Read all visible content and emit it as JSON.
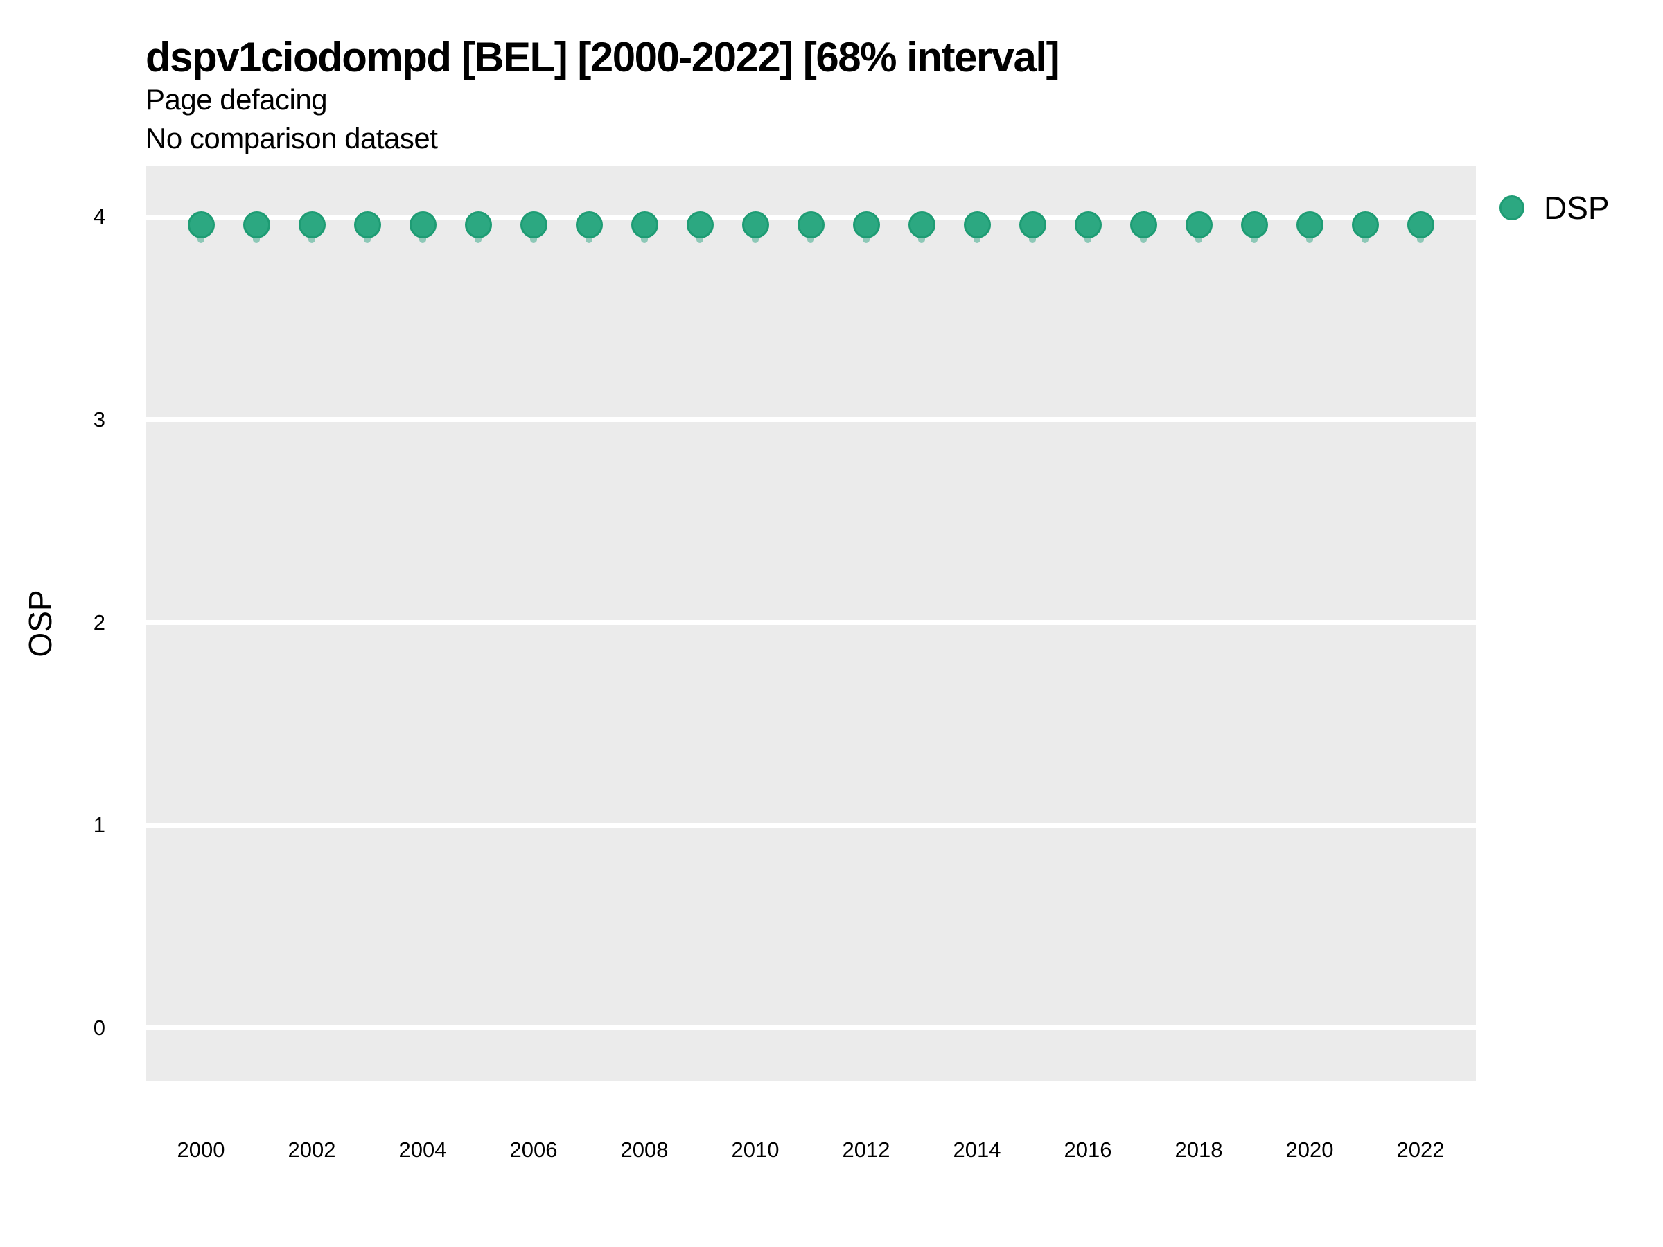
{
  "header": {
    "title": "dspv1ciodompd [BEL] [2000-2022] [68% interval]",
    "subtitle": "Page defacing",
    "note": "No comparison dataset"
  },
  "legend": {
    "label": "DSP"
  },
  "colors": {
    "panel_bg": "#EBEBEB",
    "gridline": "#FFFFFF",
    "point_fill": "#2CA881",
    "point_stroke": "#1E9C74",
    "interval_color": "#1B9E77",
    "interval_opacity": 0.45,
    "text": "#000000"
  },
  "chart_data": {
    "type": "scatter",
    "title": "dspv1ciodompd [BEL] [2000-2022] [68% interval]",
    "subtitle": "Page defacing",
    "note": "No comparison dataset",
    "xlabel": "",
    "ylabel": "OSP",
    "legend_position": "right",
    "grid": "horizontal-major-white-on-gray",
    "xlim": [
      1999,
      2023
    ],
    "ylim": [
      -0.26,
      4.25
    ],
    "xticks": [
      2000,
      2002,
      2004,
      2006,
      2008,
      2010,
      2012,
      2014,
      2016,
      2018,
      2020,
      2022
    ],
    "yticks": [
      0,
      1,
      2,
      3,
      4
    ],
    "series": [
      {
        "name": "DSP",
        "x": [
          2000,
          2001,
          2002,
          2003,
          2004,
          2005,
          2006,
          2007,
          2008,
          2009,
          2010,
          2011,
          2012,
          2013,
          2014,
          2015,
          2016,
          2017,
          2018,
          2019,
          2020,
          2021,
          2022
        ],
        "y": [
          3.96,
          3.96,
          3.96,
          3.96,
          3.96,
          3.96,
          3.96,
          3.96,
          3.96,
          3.96,
          3.96,
          3.96,
          3.96,
          3.96,
          3.96,
          3.96,
          3.96,
          3.96,
          3.96,
          3.96,
          3.96,
          3.96,
          3.96
        ],
        "interval_low": [
          3.87,
          3.87,
          3.87,
          3.87,
          3.87,
          3.87,
          3.87,
          3.87,
          3.87,
          3.87,
          3.87,
          3.87,
          3.87,
          3.87,
          3.87,
          3.87,
          3.87,
          3.87,
          3.87,
          3.87,
          3.87,
          3.87,
          3.87
        ],
        "interval_high": [
          3.99,
          3.99,
          3.99,
          3.99,
          3.99,
          3.99,
          3.99,
          3.99,
          3.99,
          3.99,
          3.99,
          3.99,
          3.99,
          3.99,
          3.99,
          3.99,
          3.99,
          3.99,
          3.99,
          3.99,
          3.99,
          3.99,
          3.99
        ]
      }
    ]
  }
}
